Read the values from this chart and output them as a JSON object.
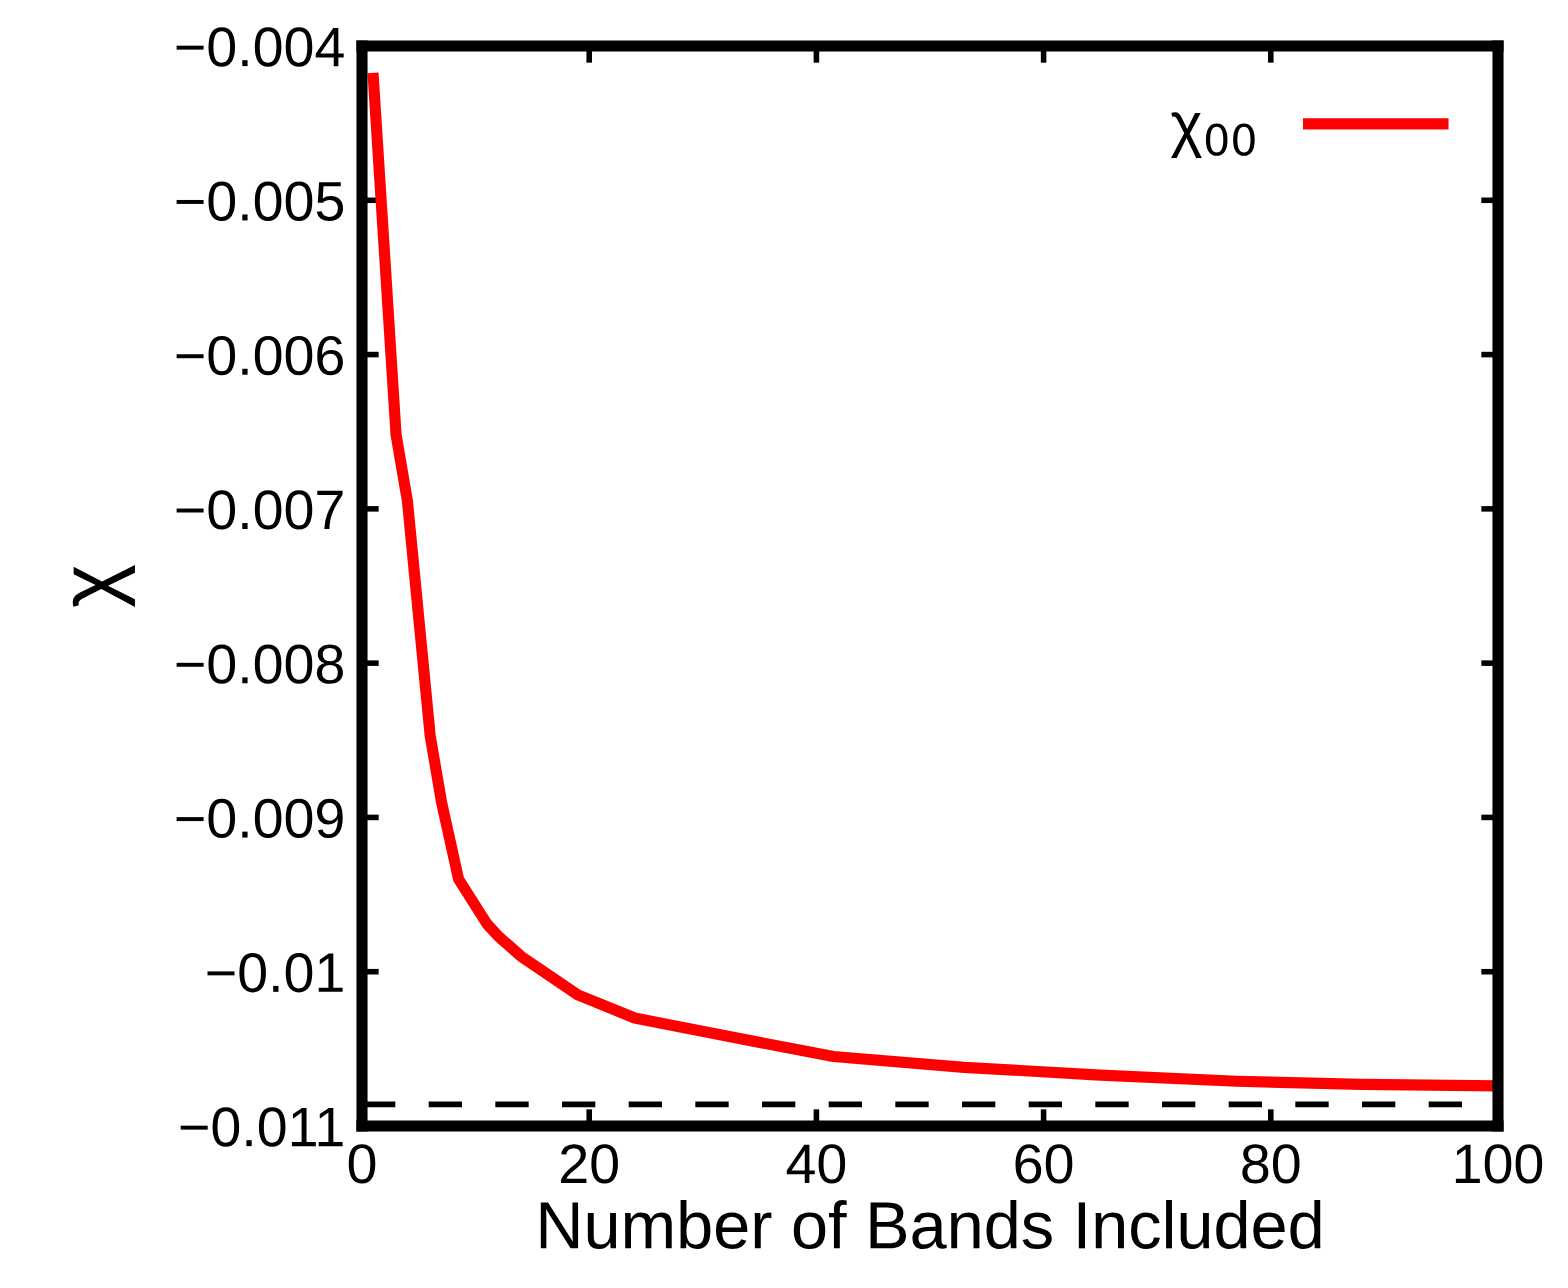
{
  "chart_data": {
    "type": "line",
    "xlabel": "Number of Bands Included",
    "ylabel": "χ",
    "xlim": [
      0,
      100
    ],
    "xticks": [
      0,
      20,
      40,
      60,
      80,
      100
    ],
    "ylim": [
      -0.011,
      -0.004
    ],
    "yticks": [
      {
        "value": -0.011,
        "label": "−0.011"
      },
      {
        "value": -0.01,
        "label": "−0.01"
      },
      {
        "value": -0.009,
        "label": "−0.009"
      },
      {
        "value": -0.008,
        "label": "−0.008"
      },
      {
        "value": -0.007,
        "label": "−0.007"
      },
      {
        "value": -0.006,
        "label": "−0.006"
      },
      {
        "value": -0.005,
        "label": "−0.005"
      },
      {
        "value": -0.004,
        "label": "−0.004"
      }
    ],
    "series": [
      {
        "name": "χ$_{00}$",
        "color": "#ff0000",
        "x": [
          1,
          3,
          4,
          6,
          7,
          8.5,
          11,
          12,
          14,
          19,
          24,
          33,
          41.5,
          53,
          65,
          77,
          88,
          100
        ],
        "values": [
          -0.00421,
          -0.00652,
          -0.00695,
          -0.00847,
          -0.0089,
          -0.0094,
          -0.00969,
          -0.00977,
          -0.0099,
          -0.01015,
          -0.0103,
          -0.01043,
          -0.01055,
          -0.01062,
          -0.01067,
          -0.01071,
          -0.01073,
          -0.01074
        ]
      }
    ],
    "ref_lines": [
      {
        "axis": "y",
        "value": -0.01086,
        "color": "#000000",
        "line_style": "dashed"
      }
    ],
    "legend": "top right",
    "grid": false,
    "marker": "none",
    "line_style": "solid"
  }
}
